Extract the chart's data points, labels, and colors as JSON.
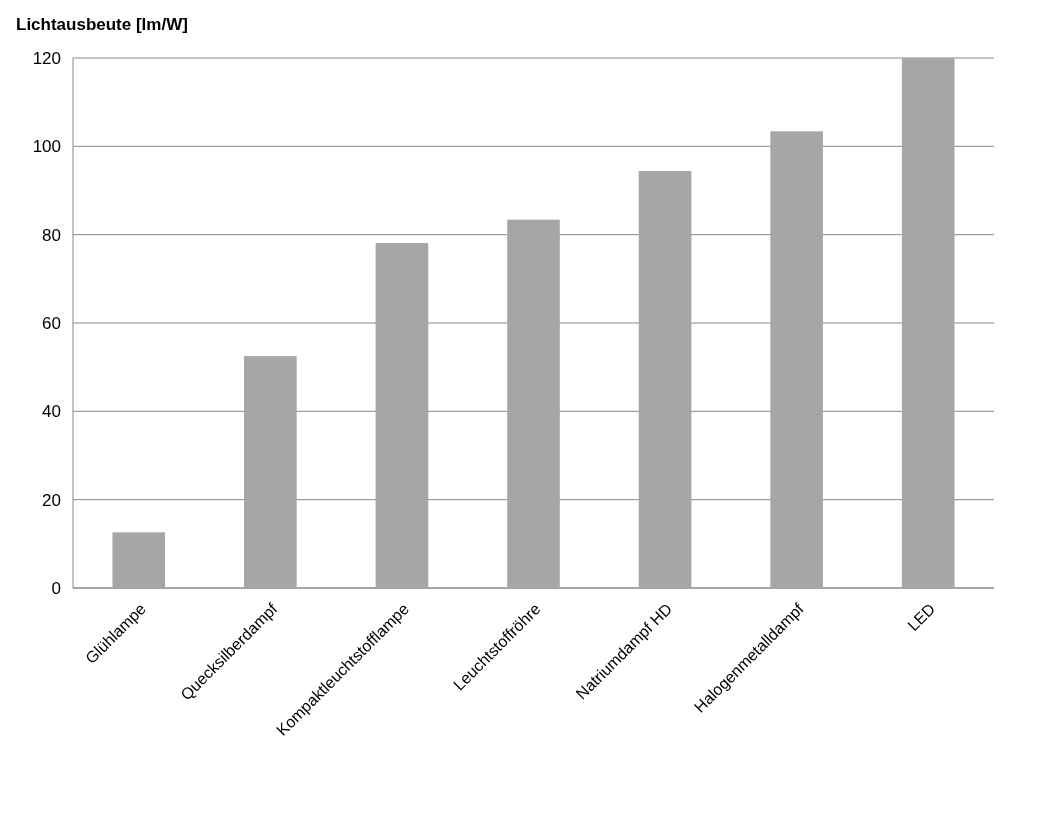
{
  "chart_data": {
    "type": "bar",
    "title": "Lichtausbeute [lm/W]",
    "categories": [
      "Glühlampe",
      "Quecksilberdampf",
      "Kompaktleuchtstofflampe",
      "Leuchtstoffröhre",
      "Natriumdampf HD",
      "Halogenmetalldampf",
      "LED"
    ],
    "values": [
      12.6,
      52.5,
      78.1,
      83.4,
      94.4,
      103.4,
      120
    ],
    "color": "#a6a6a6",
    "ylim": [
      0,
      120
    ],
    "yticks": [
      0,
      20,
      40,
      60,
      80,
      100,
      120
    ],
    "grid": "y"
  }
}
